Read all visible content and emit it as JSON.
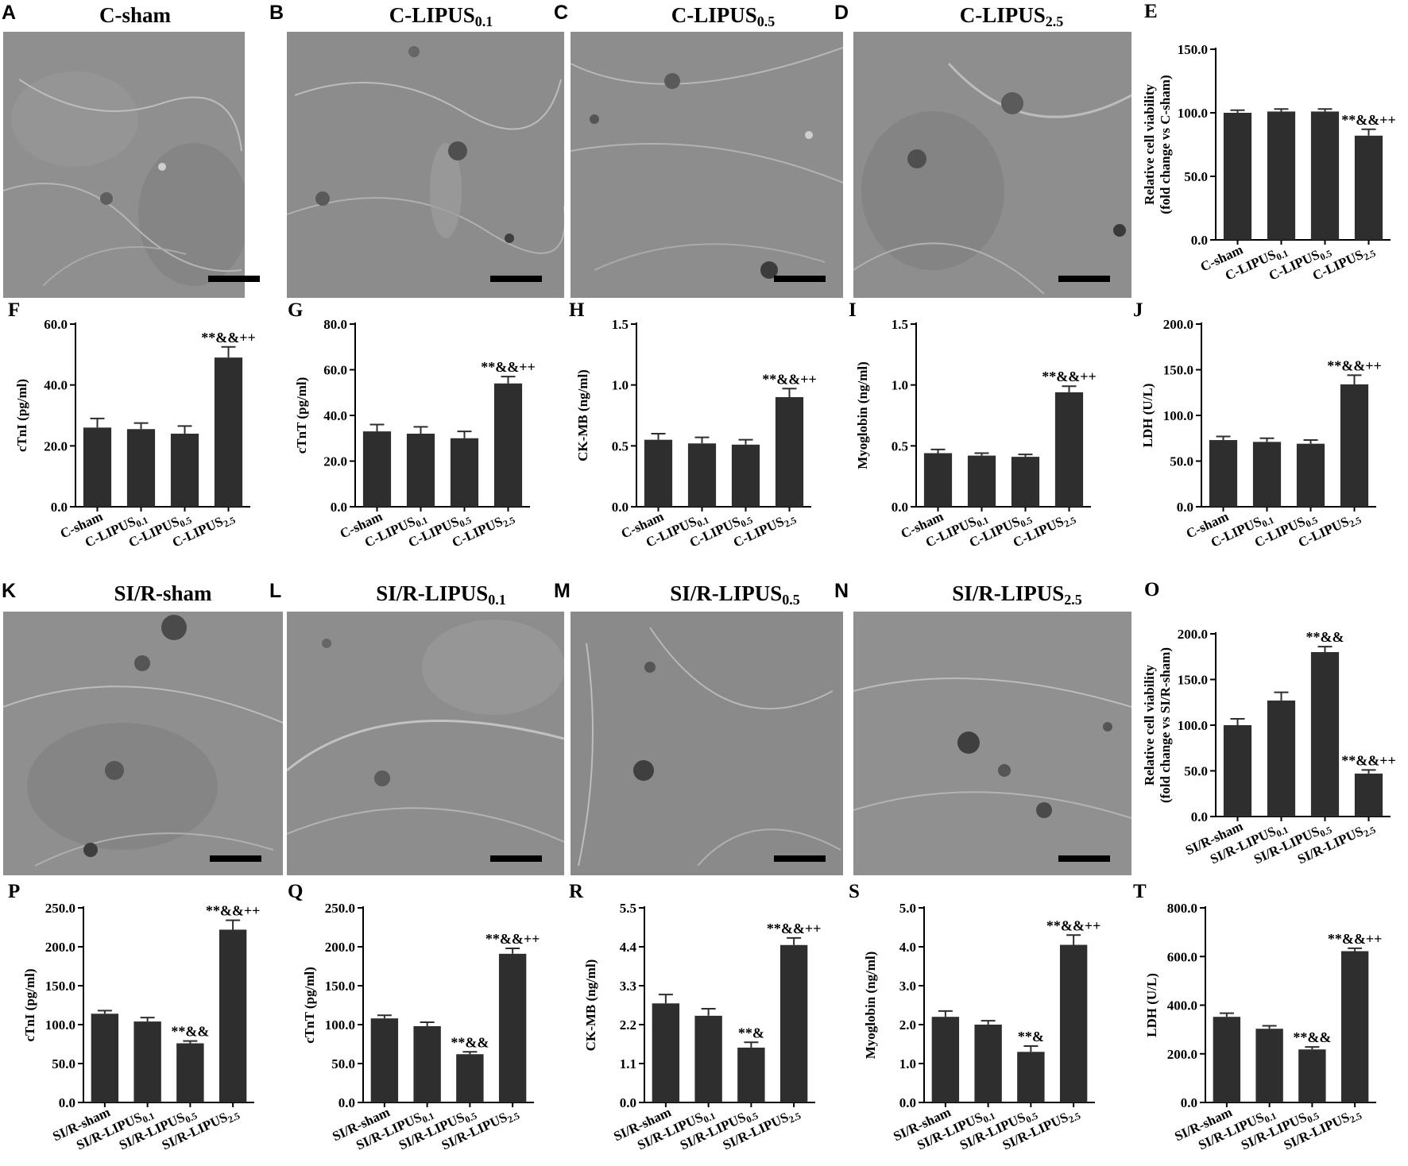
{
  "panels": {
    "A": {
      "letter": "A",
      "title_main": "C-sham",
      "title_sub": ""
    },
    "B": {
      "letter": "B",
      "title_main": "C-LIPUS",
      "title_sub": "0.1"
    },
    "C": {
      "letter": "C",
      "title_main": "C-LIPUS",
      "title_sub": "0.5"
    },
    "D": {
      "letter": "D",
      "title_main": "C-LIPUS",
      "title_sub": "2.5"
    },
    "K": {
      "letter": "K",
      "title_main": "SI/R-sham",
      "title_sub": ""
    },
    "L": {
      "letter": "L",
      "title_main": "SI/R-LIPUS",
      "title_sub": "0.1"
    },
    "M": {
      "letter": "M",
      "title_main": "SI/R-LIPUS",
      "title_sub": "0.5"
    },
    "N": {
      "letter": "N",
      "title_main": "SI/R-LIPUS",
      "title_sub": "2.5"
    }
  },
  "chart_data": [
    {
      "id": "E",
      "type": "bar",
      "letter": "E",
      "group": "C",
      "ylabel": [
        "Relative cell viability",
        "(fold change vs C-sham)"
      ],
      "ylim": [
        0,
        150
      ],
      "yticks": [
        "0.0",
        "50.0",
        "100.0",
        "150.0"
      ],
      "values": [
        100,
        101,
        101,
        82
      ],
      "errors": [
        2,
        2,
        2,
        5
      ],
      "annotations": [
        "",
        "",
        "",
        "**&&++"
      ]
    },
    {
      "id": "F",
      "type": "bar",
      "letter": "F",
      "group": "C",
      "ylabel": [
        "cTnI (pg/ml)"
      ],
      "ylim": [
        0,
        60
      ],
      "yticks": [
        "0.0",
        "20.0",
        "40.0",
        "60.0"
      ],
      "values": [
        26,
        25.5,
        24,
        49
      ],
      "errors": [
        3,
        2,
        2.5,
        3.5
      ],
      "annotations": [
        "",
        "",
        "",
        "**&&++"
      ]
    },
    {
      "id": "G",
      "type": "bar",
      "letter": "G",
      "group": "C",
      "ylabel": [
        "cTnT (pg/ml)"
      ],
      "ylim": [
        0,
        80
      ],
      "yticks": [
        "0.0",
        "20.0",
        "40.0",
        "60.0",
        "80.0"
      ],
      "values": [
        33,
        32,
        30,
        54
      ],
      "errors": [
        3,
        3,
        3,
        3
      ],
      "annotations": [
        "",
        "",
        "",
        "**&&++"
      ]
    },
    {
      "id": "H",
      "type": "bar",
      "letter": "H",
      "group": "C",
      "ylabel": [
        "CK-MB (ng/ml)"
      ],
      "ylim": [
        0,
        1.5
      ],
      "yticks": [
        "0.0",
        "0.5",
        "1.0",
        "1.5"
      ],
      "values": [
        0.55,
        0.52,
        0.51,
        0.9
      ],
      "errors": [
        0.05,
        0.05,
        0.04,
        0.07
      ],
      "annotations": [
        "",
        "",
        "",
        "**&&++"
      ]
    },
    {
      "id": "I",
      "type": "bar",
      "letter": "I",
      "group": "C",
      "ylabel": [
        "Myoglobin (ng/ml)"
      ],
      "ylim": [
        0,
        1.5
      ],
      "yticks": [
        "0.0",
        "0.5",
        "1.0",
        "1.5"
      ],
      "values": [
        0.44,
        0.42,
        0.41,
        0.94
      ],
      "errors": [
        0.03,
        0.02,
        0.02,
        0.05
      ],
      "annotations": [
        "",
        "",
        "",
        "**&&++"
      ]
    },
    {
      "id": "J",
      "type": "bar",
      "letter": "J",
      "group": "C",
      "ylabel": [
        "LDH (U/L)"
      ],
      "ylim": [
        0,
        200
      ],
      "yticks": [
        "0.0",
        "50.0",
        "100.0",
        "150.0",
        "200.0"
      ],
      "values": [
        73,
        71,
        69,
        134
      ],
      "errors": [
        4,
        4,
        4,
        10
      ],
      "annotations": [
        "",
        "",
        "",
        "**&&++"
      ]
    },
    {
      "id": "O",
      "type": "bar",
      "letter": "O",
      "group": "SI",
      "ylabel": [
        "Relative cell viability",
        "(fold change vs SI/R-sham)"
      ],
      "ylim": [
        0,
        200
      ],
      "yticks": [
        "0.0",
        "50.0",
        "100.0",
        "150.0",
        "200.0"
      ],
      "values": [
        100,
        127,
        180,
        47
      ],
      "errors": [
        7,
        9,
        6,
        4
      ],
      "annotations": [
        "",
        "",
        "**&&",
        "**&&++"
      ]
    },
    {
      "id": "P",
      "type": "bar",
      "letter": "P",
      "group": "SI",
      "ylabel": [
        "cTnI (pg/ml)"
      ],
      "ylim": [
        0,
        250
      ],
      "yticks": [
        "0.0",
        "50.0",
        "100.0",
        "150.0",
        "200.0",
        "250.0"
      ],
      "values": [
        114,
        104,
        76,
        222
      ],
      "errors": [
        4,
        5,
        3,
        12
      ],
      "annotations": [
        "",
        "",
        "**&&",
        "**&&++"
      ]
    },
    {
      "id": "Q",
      "type": "bar",
      "letter": "Q",
      "group": "SI",
      "ylabel": [
        "cTnT (pg/ml)"
      ],
      "ylim": [
        0,
        250
      ],
      "yticks": [
        "0.0",
        "50.0",
        "100.0",
        "150.0",
        "200.0",
        "250.0"
      ],
      "values": [
        108,
        98,
        62,
        191
      ],
      "errors": [
        4,
        5,
        3,
        7
      ],
      "annotations": [
        "",
        "",
        "**&&",
        "**&&++"
      ]
    },
    {
      "id": "R",
      "type": "bar",
      "letter": "R",
      "group": "SI",
      "ylabel": [
        "CK-MB (ng/ml)"
      ],
      "ylim": [
        0,
        5.5
      ],
      "yticks": [
        "0.0",
        "1.1",
        "2.2",
        "3.3",
        "4.4",
        "5.5"
      ],
      "values": [
        2.8,
        2.45,
        1.55,
        4.45
      ],
      "errors": [
        0.25,
        0.2,
        0.15,
        0.2
      ],
      "annotations": [
        "",
        "",
        "**&",
        "**&&++"
      ]
    },
    {
      "id": "S",
      "type": "bar",
      "letter": "S",
      "group": "SI",
      "ylabel": [
        "Myoglobin (ng/ml)"
      ],
      "ylim": [
        0,
        5
      ],
      "yticks": [
        "0.0",
        "1.0",
        "2.0",
        "3.0",
        "4.0",
        "5.0"
      ],
      "values": [
        2.2,
        2.0,
        1.3,
        4.05
      ],
      "errors": [
        0.15,
        0.1,
        0.15,
        0.25
      ],
      "annotations": [
        "",
        "",
        "**&",
        "**&&++"
      ]
    },
    {
      "id": "T",
      "type": "bar",
      "letter": "T",
      "group": "SI",
      "ylabel": [
        "LDH (U/L)"
      ],
      "ylim": [
        0,
        800
      ],
      "yticks": [
        "0.0",
        "200.0",
        "400.0",
        "600.0",
        "800.0"
      ],
      "values": [
        352,
        303,
        218,
        622
      ],
      "errors": [
        15,
        12,
        10,
        12
      ],
      "annotations": [
        "",
        "",
        "**&&",
        "**&&++"
      ]
    }
  ],
  "categories": {
    "C": [
      {
        "main": "C-sham",
        "sub": ""
      },
      {
        "main": "C-LIPUS",
        "sub": "0.1"
      },
      {
        "main": "C-LIPUS",
        "sub": "0.5"
      },
      {
        "main": "C-LIPUS",
        "sub": "2.5"
      }
    ],
    "SI": [
      {
        "main": "SI/R-sham",
        "sub": ""
      },
      {
        "main": "SI/R-LIPUS",
        "sub": "0.1"
      },
      {
        "main": "SI/R-LIPUS",
        "sub": "0.5"
      },
      {
        "main": "SI/R-LIPUS",
        "sub": "2.5"
      }
    ]
  },
  "colors": {
    "bar": "#2e2e2e",
    "axis": "#000000",
    "micrograph": "#8e8e8e"
  }
}
